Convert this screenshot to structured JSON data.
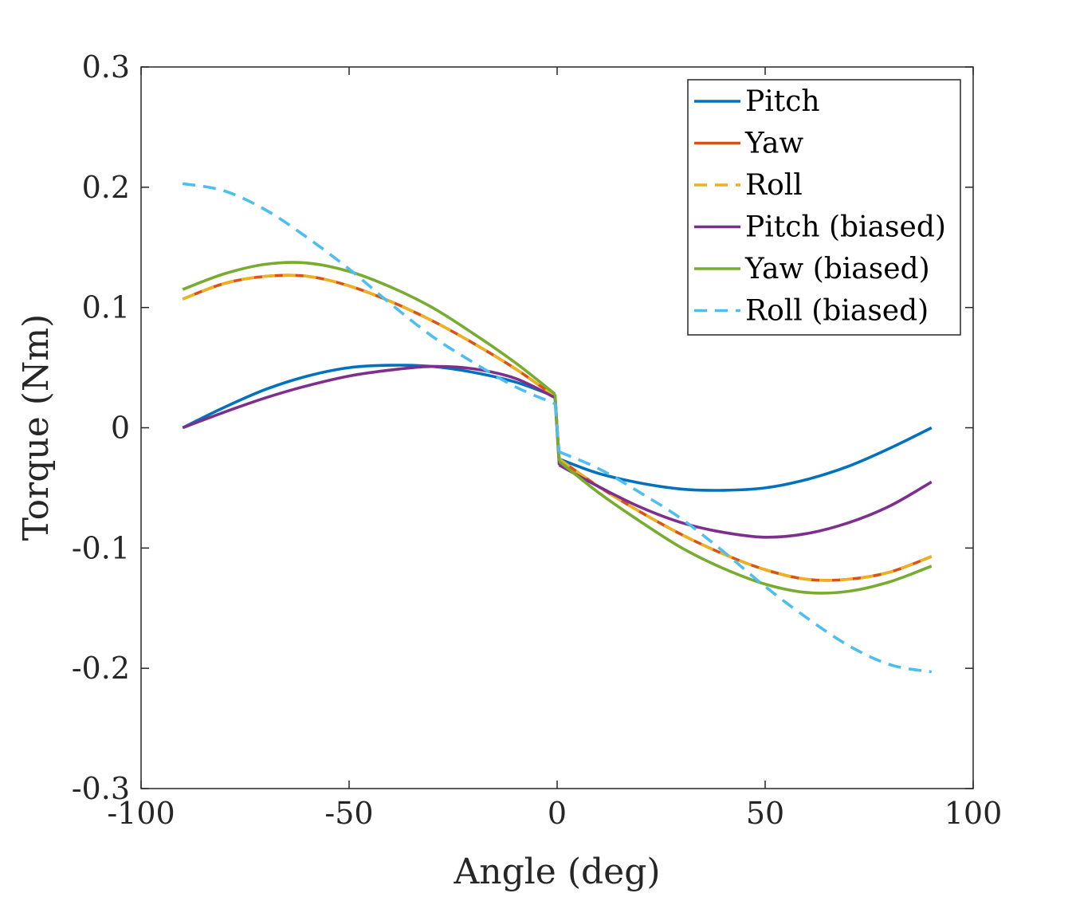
{
  "chart_data": {
    "type": "line",
    "title": "",
    "xlabel": "Angle (deg)",
    "ylabel": "Torque (Nm)",
    "xlim": [
      -100,
      100
    ],
    "ylim": [
      -0.3,
      0.3
    ],
    "xticks": [
      -100,
      -50,
      0,
      50,
      100
    ],
    "xtick_labels": [
      "-100",
      "-50",
      "0",
      "50",
      "100"
    ],
    "yticks": [
      -0.3,
      -0.2,
      -0.1,
      0,
      0.1,
      0.2,
      0.3
    ],
    "ytick_labels": [
      "-0.3",
      "-0.2",
      "-0.1",
      "0",
      "0.1",
      "0.2",
      "0.3"
    ],
    "grid": false,
    "legend_position": "top-right",
    "series": [
      {
        "name": "Pitch",
        "color": "#0072BD",
        "dash": "solid",
        "x": [
          -90,
          -80,
          -70,
          -60,
          -50,
          -40,
          -30,
          -20,
          -10,
          -0.5,
          0.5,
          10,
          20,
          30,
          40,
          50,
          60,
          70,
          80,
          90
        ],
        "y": [
          0,
          0.017,
          0.032,
          0.043,
          0.05,
          0.052,
          0.051,
          0.046,
          0.038,
          0.026,
          -0.026,
          -0.038,
          -0.046,
          -0.051,
          -0.052,
          -0.05,
          -0.043,
          -0.032,
          -0.017,
          0
        ]
      },
      {
        "name": "Yaw",
        "color": "#D95319",
        "dash": "solid",
        "x": [
          -90,
          -80,
          -70,
          -60,
          -50,
          -40,
          -30,
          -20,
          -10,
          -0.5,
          0.5,
          10,
          20,
          30,
          40,
          50,
          60,
          70,
          80,
          90
        ],
        "y": [
          0.107,
          0.12,
          0.126,
          0.126,
          0.118,
          0.105,
          0.089,
          0.07,
          0.049,
          0.026,
          -0.026,
          -0.049,
          -0.07,
          -0.089,
          -0.105,
          -0.118,
          -0.126,
          -0.126,
          -0.12,
          -0.107
        ]
      },
      {
        "name": "Roll",
        "color": "#EDB120",
        "dash": "dashed",
        "x": [
          -90,
          -80,
          -70,
          -60,
          -50,
          -40,
          -30,
          -20,
          -10,
          -0.5,
          0.5,
          10,
          20,
          30,
          40,
          50,
          60,
          70,
          80,
          90
        ],
        "y": [
          0.107,
          0.12,
          0.126,
          0.126,
          0.118,
          0.105,
          0.089,
          0.07,
          0.049,
          0.026,
          -0.026,
          -0.049,
          -0.07,
          -0.089,
          -0.105,
          -0.118,
          -0.126,
          -0.126,
          -0.12,
          -0.107
        ]
      },
      {
        "name": "Pitch (biased)",
        "color": "#7E2F8E",
        "dash": "solid",
        "x": [
          -90,
          -80,
          -70,
          -60,
          -50,
          -40,
          -30,
          -20,
          -10,
          -0.5,
          0.5,
          10,
          20,
          30,
          40,
          50,
          60,
          70,
          80,
          90
        ],
        "y": [
          0,
          0.013,
          0.025,
          0.035,
          0.043,
          0.048,
          0.051,
          0.049,
          0.041,
          0.025,
          -0.031,
          -0.049,
          -0.066,
          -0.079,
          -0.087,
          -0.091,
          -0.088,
          -0.079,
          -0.065,
          -0.045
        ]
      },
      {
        "name": "Yaw (biased)",
        "color": "#77AC30",
        "dash": "solid",
        "x": [
          -90,
          -80,
          -70,
          -60,
          -50,
          -40,
          -30,
          -20,
          -10,
          -0.5,
          0.5,
          10,
          20,
          30,
          40,
          50,
          60,
          70,
          80,
          90
        ],
        "y": [
          0.115,
          0.128,
          0.136,
          0.137,
          0.13,
          0.117,
          0.1,
          0.078,
          0.054,
          0.028,
          -0.028,
          -0.054,
          -0.078,
          -0.1,
          -0.117,
          -0.13,
          -0.137,
          -0.136,
          -0.128,
          -0.115
        ]
      },
      {
        "name": "Roll (biased)",
        "color": "#4DBEEE",
        "dash": "dashed",
        "x": [
          -90,
          -80,
          -70,
          -60,
          -50,
          -40,
          -30,
          -20,
          -10,
          -0.5,
          0.5,
          10,
          20,
          30,
          40,
          50,
          60,
          70,
          80,
          90
        ],
        "y": [
          0.203,
          0.197,
          0.181,
          0.158,
          0.132,
          0.103,
          0.076,
          0.054,
          0.034,
          0.02,
          -0.02,
          -0.034,
          -0.054,
          -0.076,
          -0.103,
          -0.132,
          -0.158,
          -0.181,
          -0.197,
          -0.203
        ]
      }
    ]
  }
}
